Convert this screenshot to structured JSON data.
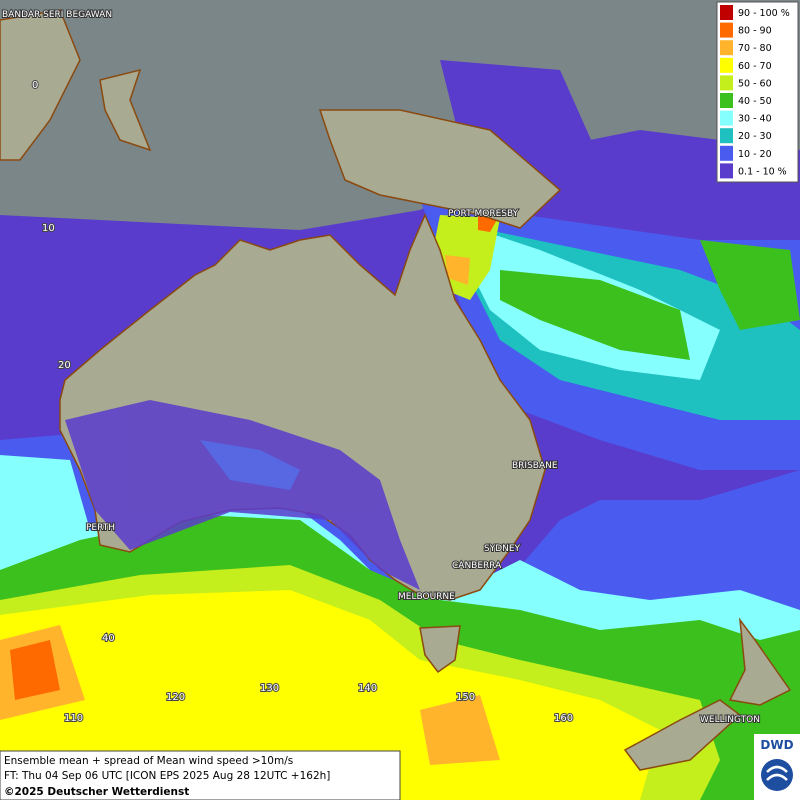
{
  "legend": {
    "items": [
      {
        "label": "90 - 100 %",
        "color": "#c00000"
      },
      {
        "label": "80 - 90",
        "color": "#ff6a00"
      },
      {
        "label": "70 - 80",
        "color": "#ffb42c"
      },
      {
        "label": "60 - 70",
        "color": "#ffff00"
      },
      {
        "label": "50 - 60",
        "color": "#c4ee1c"
      },
      {
        "label": "40 - 50",
        "color": "#3cc01e"
      },
      {
        "label": "30 - 40",
        "color": "#86ffff"
      },
      {
        "label": "20 - 30",
        "color": "#1ec0c0"
      },
      {
        "label": "10 - 20",
        "color": "#4a5cf0"
      },
      {
        "label": "0.1 - 10 %",
        "color": "#5a3ccc"
      }
    ]
  },
  "places": [
    "BANDAR SERI BEGAWAN",
    "PORT MORESBY",
    "BRISBANE",
    "PERTH",
    "SYDNEY",
    "CANBERRA",
    "MELBOURNE",
    "WELLINGTON"
  ],
  "grid_labels": {
    "latitudes": [
      0,
      10,
      20,
      40
    ],
    "longitudes": [
      110,
      120,
      130,
      140,
      150,
      160
    ]
  },
  "info": {
    "line1": "Ensemble mean + spread of Mean wind speed >10m/s",
    "line2": "FT: Thu 04 Sep 06 UTC [ICON EPS 2025 Aug 28 12UTC +162h]",
    "copyright": "©2025 Deutscher Wetterdienst"
  },
  "logo": "DWD"
}
